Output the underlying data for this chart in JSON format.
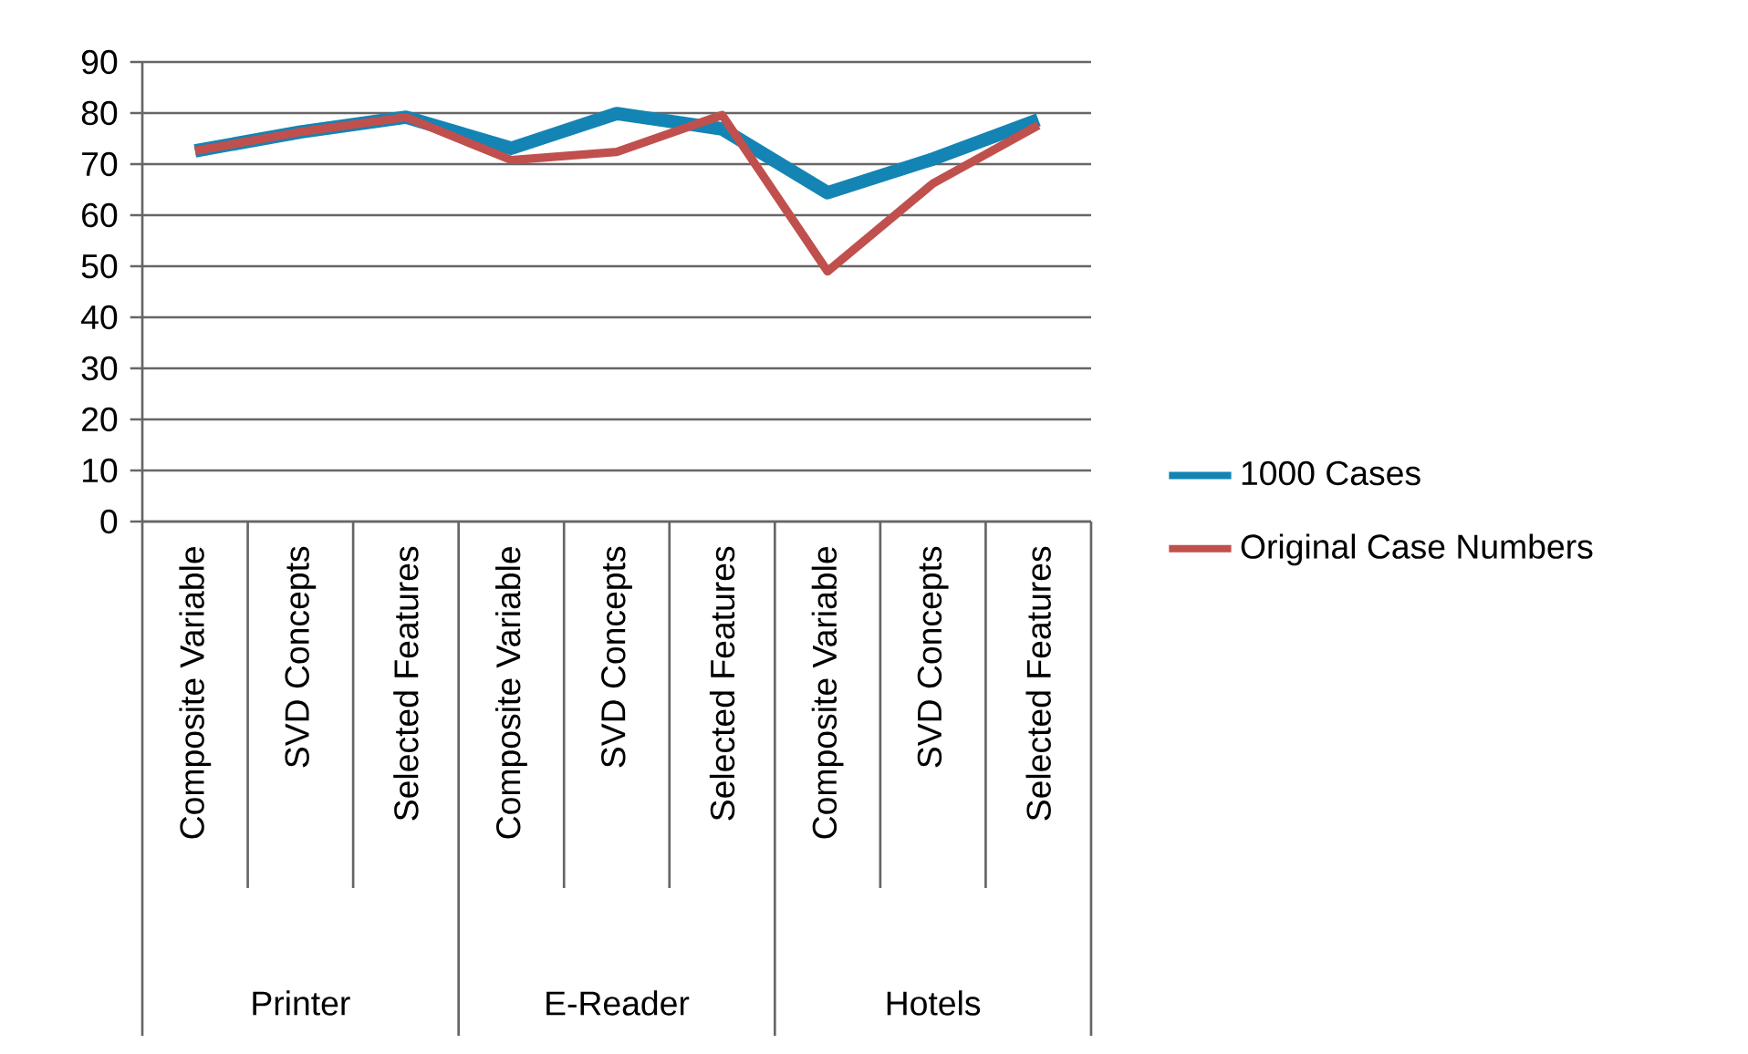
{
  "chart_data": {
    "type": "line",
    "categories": [
      "Composite Variable",
      "SVD Concepts",
      "Selected Features",
      "Composite Variable",
      "SVD Concepts",
      "Selected Features",
      "Composite Variable",
      "SVD Concepts",
      "Selected Features"
    ],
    "series": [
      {
        "name": "1000 Cases",
        "color": "#1384b4",
        "values": [
          72.6,
          76.3,
          79.2,
          73.1,
          79.9,
          76.9,
          64.4,
          71.0,
          78.7
        ]
      },
      {
        "name": "Original Case Numbers",
        "color": "#c0504d",
        "values": [
          72.6,
          76.3,
          79.2,
          70.8,
          72.4,
          79.6,
          49.0,
          66.2,
          77.6
        ]
      }
    ],
    "annotations": [
      "Printer",
      "E-Reader",
      "Hotels"
    ],
    "ylim": [
      0,
      90
    ],
    "yticks": [
      0,
      10,
      20,
      30,
      40,
      50,
      60,
      70,
      80,
      90
    ],
    "grid": "y",
    "legend": "right",
    "marker": "none",
    "line_style": "solid"
  }
}
